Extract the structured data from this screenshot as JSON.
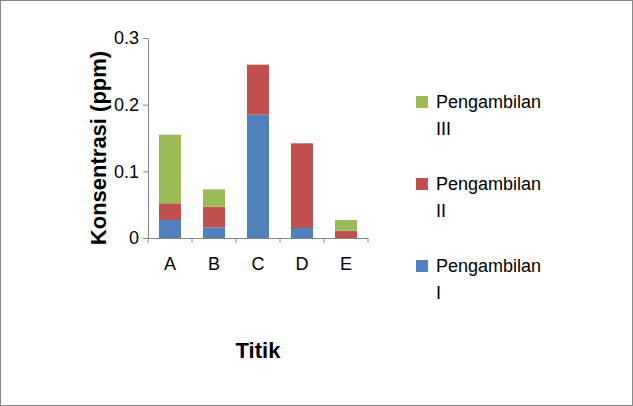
{
  "chart_data": {
    "type": "bar",
    "stacked": true,
    "legend": "right",
    "x_label": "Titik",
    "y_label": "Konsentrasi (ppm)",
    "categories": [
      "A",
      "B",
      "C",
      "D",
      "E"
    ],
    "series": [
      {
        "name": "Pengambilan I",
        "color": "#4f81bd",
        "values": [
          0.027,
          0.016,
          0.185,
          0.015,
          0
        ]
      },
      {
        "name": "Pengambilan II",
        "color": "#c0504d",
        "values": [
          0.025,
          0.031,
          0.075,
          0.127,
          0.011
        ]
      },
      {
        "name": "Pengambilan III",
        "color": "#9bbb59",
        "values": [
          0.103,
          0.026,
          0,
          0,
          0.016
        ]
      }
    ],
    "ylim": [
      0,
      0.3
    ],
    "yticks": [
      0,
      0.1,
      0.2,
      0.3
    ]
  }
}
